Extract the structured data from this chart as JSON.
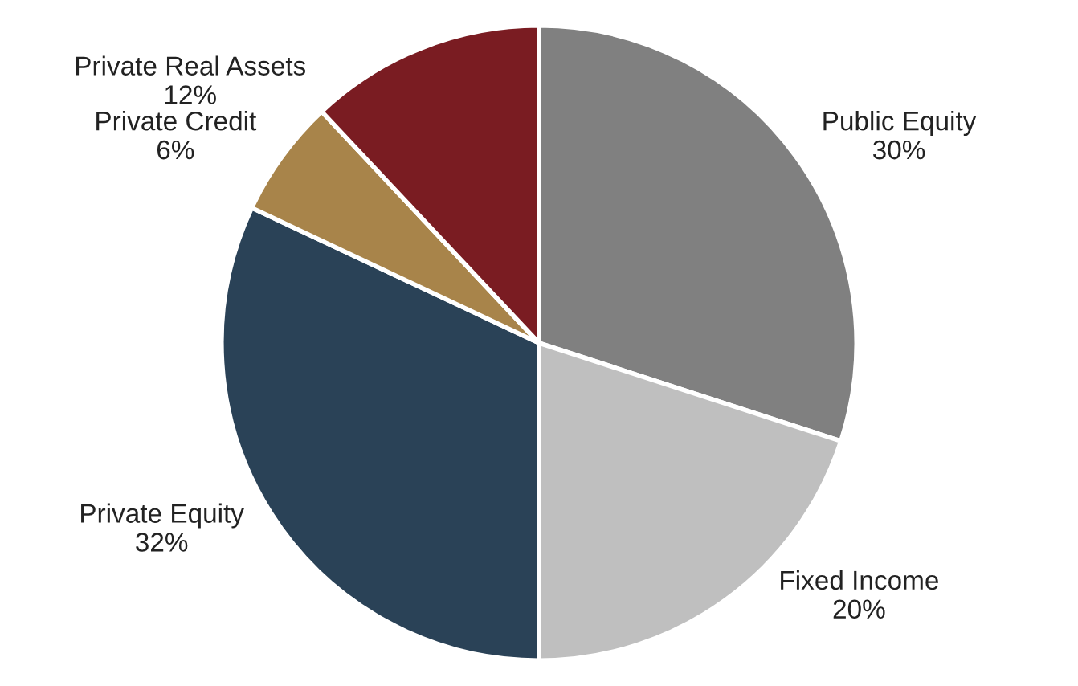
{
  "chart_data": {
    "type": "pie",
    "categories": [
      "Public Equity",
      "Fixed Income",
      "Private Equity",
      "Private Credit",
      "Private Real Assets"
    ],
    "values": [
      30,
      20,
      32,
      6,
      12
    ],
    "value_labels": [
      "30%",
      "20%",
      "32%",
      "6%",
      "12%"
    ],
    "colors": [
      "#808080",
      "#bfbfbf",
      "#2a4257",
      "#a8844a",
      "#7a1c22"
    ]
  }
}
